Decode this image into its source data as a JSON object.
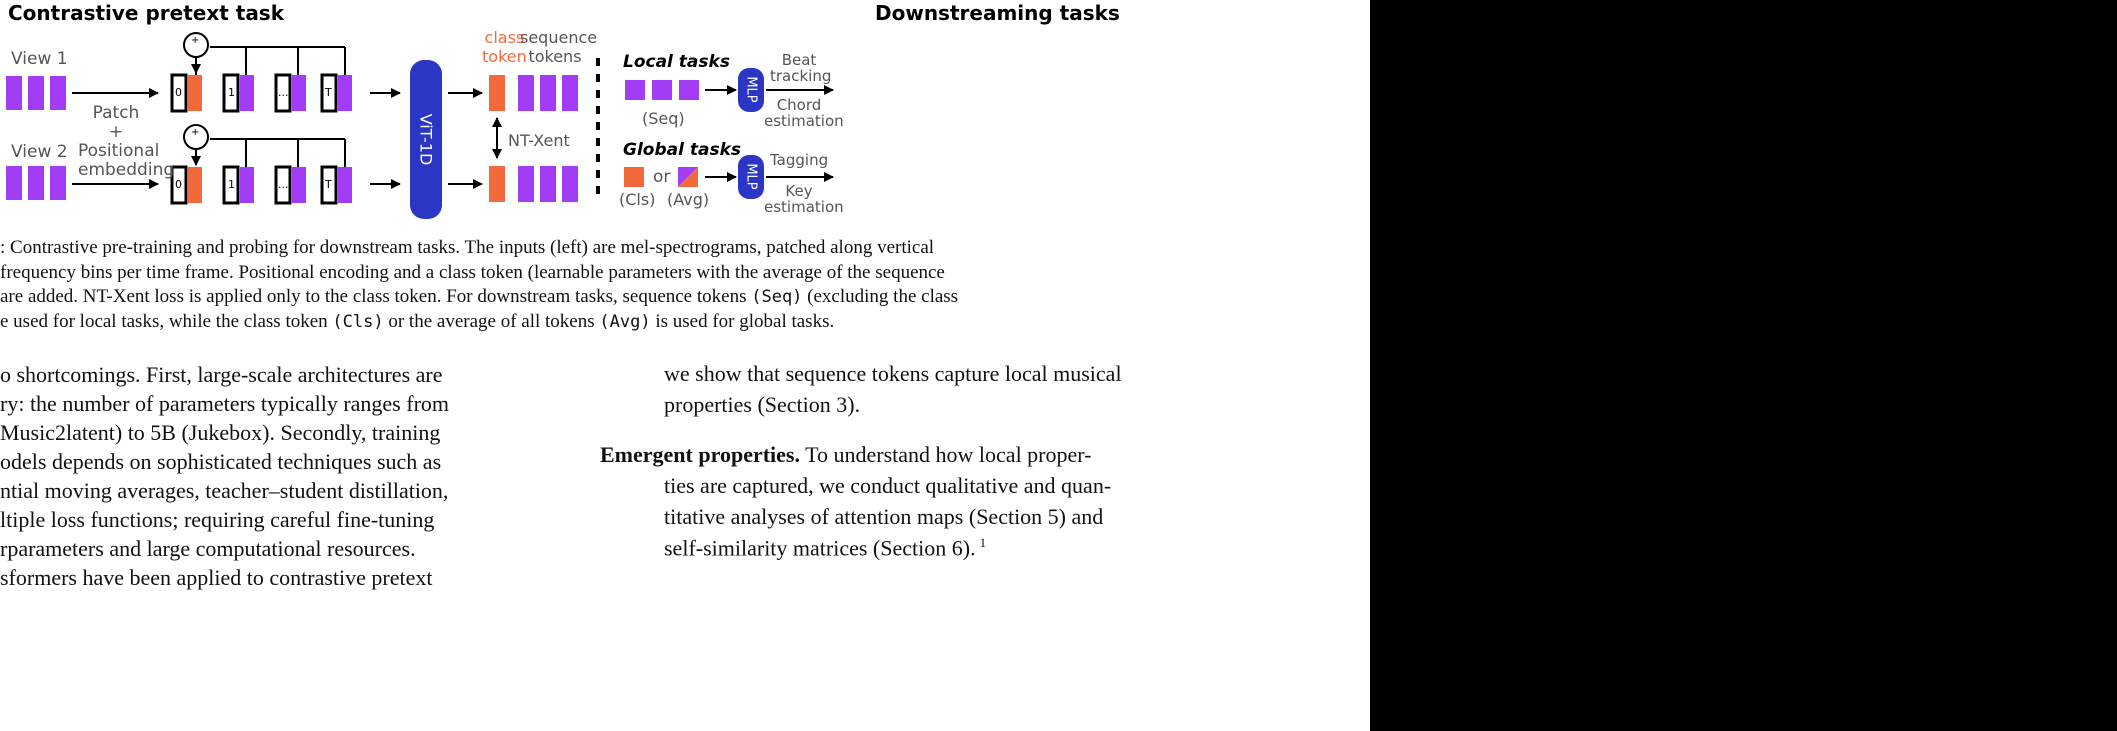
{
  "figure": {
    "left_title": "Contrastive pretext task",
    "right_title": "Downstreaming tasks",
    "view1": "View 1",
    "view2": "View 2",
    "patch_label": [
      "Patch",
      "+",
      "Positional",
      "embedding"
    ],
    "plus": "+",
    "token_indices": [
      "0",
      "1",
      "...",
      "T"
    ],
    "vit_label": "ViT-1D",
    "class_token_label": [
      "class",
      "token"
    ],
    "sequence_tokens_label": [
      "sequence",
      "tokens"
    ],
    "ntxent": "NT-Xent",
    "local_tasks": "Local tasks",
    "global_tasks": "Global tasks",
    "seq_label": "(Seq)",
    "cls_label": "(Cls)",
    "avg_label": "(Avg)",
    "or": "or",
    "mlp": "MLP",
    "local_outputs": [
      "Beat",
      "tracking",
      "Chord",
      "estimation"
    ],
    "global_outputs": [
      "Tagging",
      "Key",
      "estimation"
    ],
    "colors": {
      "purple": "#a23cf5",
      "orange": "#f26a3b",
      "blue": "#2b36c4",
      "black": "#000000"
    }
  },
  "caption": {
    "line1": ": Contrastive pre-training and probing for downstream tasks.  The inputs (left) are mel-spectrograms, patched along vertical",
    "line2": "frequency bins per time frame.  Positional encoding and a class token (learnable parameters with the average of the sequence",
    "line3a": "are added.  NT-Xent loss is applied only to the class token.  For downstream tasks, sequence tokens",
    "line3_code": "(Seq)",
    "line3b": "(excluding the class",
    "line4a": "e used for local tasks, while the class token",
    "line4_code1": "(Cls)",
    "line4b": "or the average of all tokens",
    "line4_code2": "(Avg)",
    "line4c": "is used for global tasks."
  },
  "body_left": [
    "o shortcomings.  First, large-scale architectures are",
    "ry:  the number of parameters typically ranges from",
    "Music2latent) to 5B (Jukebox).  Secondly, training",
    "odels depends on sophisticated techniques such as",
    "ntial moving averages, teacher–student distillation,",
    "ltiple loss functions; requiring careful fine-tuning",
    "rparameters and large computational resources.",
    "sformers have been applied to contrastive pretext"
  ],
  "body_right": {
    "p1_line1": "we show that sequence tokens capture local musical",
    "p1_line2": "properties (Section 3).",
    "p2_head": "Emergent properties.",
    "p2_line1": " To understand how local proper-",
    "p2_line2": "ties are captured, we conduct qualitative and quan-",
    "p2_line3": "titative analyses of attention maps (Section 5) and",
    "p2_line4": "self-similarity matrices (Section 6).",
    "footnote_mark": "1"
  }
}
